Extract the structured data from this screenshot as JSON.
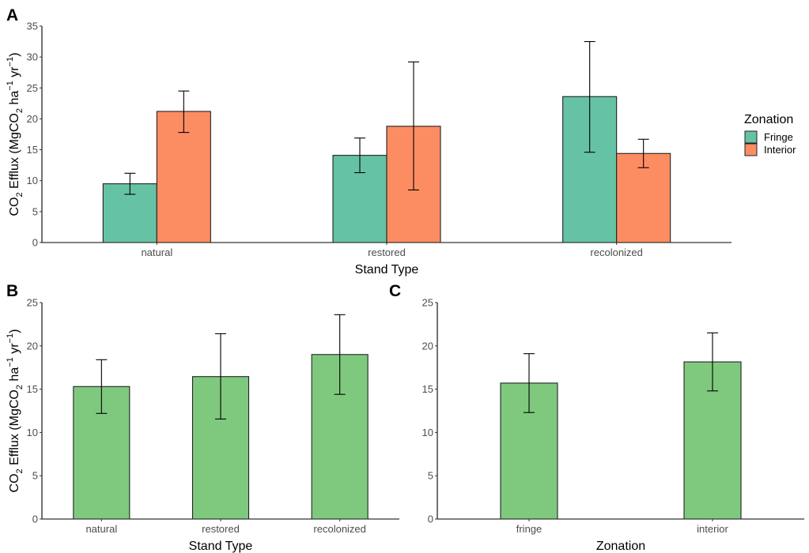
{
  "chart_data": [
    {
      "panel": "A",
      "type": "bar",
      "grouped": true,
      "categories": [
        "natural",
        "restored",
        "recolonized"
      ],
      "series": [
        {
          "name": "Fringe",
          "color": "#66c2a5",
          "values": [
            9.5,
            14.1,
            23.6
          ],
          "err_low": [
            7.8,
            11.3,
            14.6
          ],
          "err_high": [
            11.2,
            16.9,
            32.5
          ]
        },
        {
          "name": "Interior",
          "color": "#fc8d62",
          "values": [
            21.2,
            18.8,
            14.4
          ],
          "err_low": [
            17.8,
            8.5,
            12.1
          ],
          "err_high": [
            24.5,
            29.2,
            16.7
          ]
        }
      ],
      "xlabel": "Stand Type",
      "ylabel": "CO2 Efflux (MgCO2 ha-1 yr-1)",
      "ylim": [
        0,
        35
      ],
      "yticks": [
        0,
        5,
        10,
        15,
        20,
        25,
        30,
        35
      ],
      "legend": {
        "title": "Zonation",
        "position": "right"
      },
      "grid": false
    },
    {
      "panel": "B",
      "type": "bar",
      "categories": [
        "natural",
        "restored",
        "recolonized"
      ],
      "values": [
        15.3,
        16.45,
        19.0
      ],
      "err_low": [
        12.2,
        11.55,
        14.4
      ],
      "err_high": [
        18.4,
        21.4,
        23.6
      ],
      "color": "#7fc97f",
      "xlabel": "Stand Type",
      "ylabel": "CO2 Efflux (MgCO2 ha-1 yr-1)",
      "ylim": [
        0,
        25
      ],
      "yticks": [
        0,
        5,
        10,
        15,
        20,
        25
      ],
      "grid": false
    },
    {
      "panel": "C",
      "type": "bar",
      "categories": [
        "fringe",
        "interior"
      ],
      "values": [
        15.7,
        18.15
      ],
      "err_low": [
        12.3,
        14.8
      ],
      "err_high": [
        19.1,
        21.5
      ],
      "color": "#7fc97f",
      "xlabel": "Zonation",
      "ylabel": "",
      "ylim": [
        0,
        25
      ],
      "yticks": [
        0,
        5,
        10,
        15,
        20,
        25
      ],
      "grid": false
    }
  ],
  "labels": {
    "panel_a": "A",
    "panel_b": "B",
    "panel_c": "C",
    "ylabel_main": "CO",
    "ylabel_sub2": "2",
    "ylabel_mid": " Efflux (MgCO",
    "ylabel_sub2b": "2",
    "ylabel_ha": " ha",
    "ylabel_sup1": "−1",
    "ylabel_yr": " yr",
    "ylabel_sup2": "−1",
    "ylabel_close": ")"
  }
}
